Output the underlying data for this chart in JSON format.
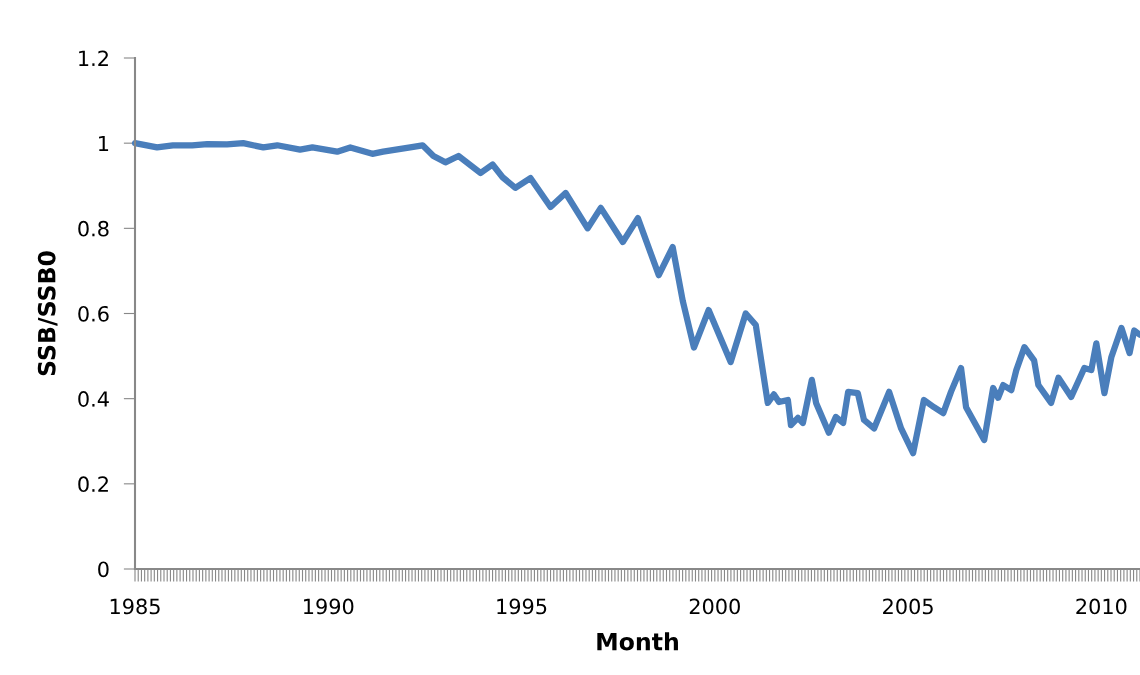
{
  "chart_data": {
    "type": "line",
    "xlabel": "Month",
    "ylabel": "SSB/SSB0",
    "x": [
      1985.0,
      1985.57,
      1985.98,
      1986.48,
      1986.87,
      1987.38,
      1987.8,
      1988.32,
      1988.68,
      1989.27,
      1989.59,
      1990.23,
      1990.57,
      1991.14,
      1991.42,
      1992.12,
      1992.44,
      1992.72,
      1993.03,
      1993.37,
      1993.94,
      1994.25,
      1994.51,
      1994.84,
      1995.23,
      1995.75,
      1996.14,
      1996.71,
      1997.05,
      1997.62,
      1998.01,
      1998.55,
      1998.91,
      1999.17,
      1999.46,
      1999.84,
      2000.41,
      2000.8,
      2001.06,
      2001.37,
      2001.53,
      2001.66,
      2001.89,
      2001.97,
      2002.15,
      2002.28,
      2002.51,
      2002.62,
      2002.95,
      2003.13,
      2003.32,
      2003.45,
      2003.7,
      2003.86,
      2004.12,
      2004.51,
      2004.82,
      2005.13,
      2005.41,
      2005.67,
      2005.91,
      2006.11,
      2006.37,
      2006.5,
      2006.97,
      2007.2,
      2007.33,
      2007.46,
      2007.67,
      2007.8,
      2008.01,
      2008.26,
      2008.37,
      2008.7,
      2008.89,
      2009.22,
      2009.56,
      2009.74,
      2009.87,
      2010.08,
      2010.26,
      2010.52,
      2010.73,
      2010.85,
      2011.0
    ],
    "series": [
      {
        "color": "#4a7ebb",
        "values": [
          1.0,
          0.99,
          0.995,
          0.995,
          0.998,
          0.997,
          1.0,
          0.99,
          0.995,
          0.985,
          0.99,
          0.98,
          0.99,
          0.975,
          0.98,
          0.99,
          0.995,
          0.97,
          0.955,
          0.97,
          0.93,
          0.95,
          0.92,
          0.895,
          0.918,
          0.85,
          0.883,
          0.8,
          0.848,
          0.768,
          0.824,
          0.69,
          0.756,
          0.63,
          0.52,
          0.608,
          0.486,
          0.6,
          0.573,
          0.39,
          0.41,
          0.392,
          0.397,
          0.338,
          0.355,
          0.343,
          0.444,
          0.39,
          0.32,
          0.357,
          0.343,
          0.416,
          0.413,
          0.35,
          0.33,
          0.416,
          0.33,
          0.272,
          0.397,
          0.38,
          0.366,
          0.416,
          0.472,
          0.38,
          0.303,
          0.425,
          0.402,
          0.432,
          0.42,
          0.467,
          0.521,
          0.49,
          0.432,
          0.39,
          0.449,
          0.404,
          0.472,
          0.467,
          0.53,
          0.413,
          0.498,
          0.566,
          0.507,
          0.56,
          0.55
        ]
      }
    ],
    "xlim": [
      1985,
      2011
    ],
    "xticks": [
      1985,
      1990,
      1995,
      2000,
      2005,
      2010
    ],
    "ylim": [
      0,
      1.2
    ],
    "yticks": [
      0,
      0.2,
      0.4,
      0.6,
      0.8,
      1,
      1.2
    ],
    "grid": false,
    "legend": false,
    "marker": "none",
    "line_style": "solid"
  }
}
